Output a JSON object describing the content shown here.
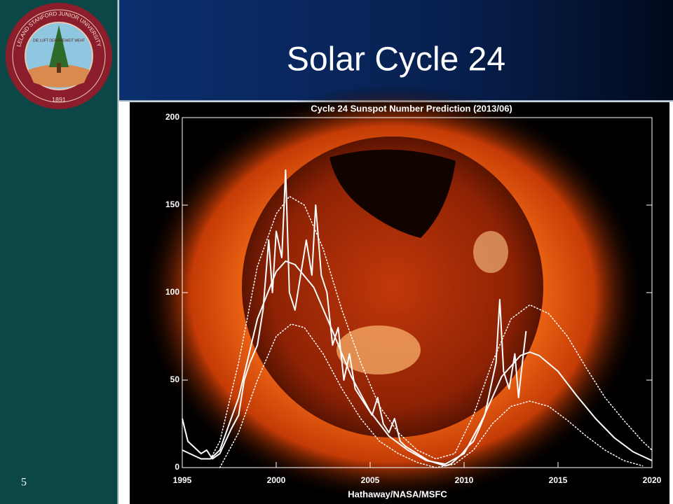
{
  "slide": {
    "title": "Solar Cycle 24",
    "page_number": "5",
    "seal": {
      "name": "LELAND STANFORD JUNIOR UNIVERSITY",
      "motto": "DIE LUFT DER FREIHEIT WEHT",
      "year": "1891"
    }
  },
  "chart_data": {
    "type": "line",
    "title": "Cycle 24 Sunspot Number Prediction (2013/06)",
    "credit": "Hathaway/NASA/MSFC",
    "xlim": [
      1995,
      2020
    ],
    "xticks": [
      1995,
      2000,
      2005,
      2010,
      2015,
      2020
    ],
    "ylim": [
      0,
      200
    ],
    "yticks": [
      0,
      50,
      100,
      150,
      200
    ],
    "series": [
      {
        "color": "#ffffff",
        "style": "solid",
        "width": 2,
        "x": [
          1995.0,
          1995.3,
          1995.6,
          1996.0,
          1996.3,
          1996.6,
          1997.0,
          1997.3,
          1997.6,
          1998.0,
          1998.3,
          1998.6,
          1999.0,
          1999.3,
          1999.6,
          1999.8,
          2000.0,
          2000.3,
          2000.5,
          2000.7,
          2001.0,
          2001.3,
          2001.6,
          2001.9,
          2002.1,
          2002.4,
          2002.7,
          2003.0,
          2003.3,
          2003.6,
          2003.9,
          2004.2,
          2004.5,
          2004.8,
          2005.1,
          2005.4,
          2005.7,
          2006.0,
          2006.3,
          2006.6,
          2006.9,
          2007.2,
          2007.5,
          2007.8,
          2008.1,
          2008.4,
          2008.7,
          2009.0,
          2009.3,
          2009.6,
          2009.9,
          2010.2,
          2010.5,
          2010.8,
          2011.1,
          2011.4,
          2011.7,
          2011.9,
          2012.1,
          2012.4,
          2012.7,
          2012.9,
          2013.1,
          2013.3
        ],
        "values": [
          28,
          15,
          12,
          8,
          10,
          5,
          8,
          15,
          22,
          30,
          50,
          60,
          70,
          90,
          130,
          100,
          135,
          120,
          170,
          100,
          90,
          110,
          130,
          110,
          150,
          110,
          100,
          70,
          80,
          50,
          65,
          45,
          40,
          35,
          30,
          40,
          25,
          20,
          28,
          15,
          12,
          10,
          8,
          6,
          4,
          3,
          2,
          1,
          2,
          5,
          8,
          12,
          15,
          22,
          30,
          45,
          60,
          96,
          55,
          45,
          65,
          40,
          60,
          78
        ]
      },
      {
        "color": "#ffffff",
        "style": "solid",
        "width": 2,
        "x": [
          1995,
          1996,
          1996.5,
          1997,
          1998,
          1999,
          2000,
          2000.5,
          2001,
          2002,
          2003,
          2004,
          2005,
          2006,
          2007,
          2008,
          2009,
          2010,
          2011,
          2012,
          2013,
          2013.5,
          2014,
          2015,
          2016,
          2017,
          2018,
          2019,
          2020
        ],
        "values": [
          10,
          5,
          5,
          10,
          40,
          85,
          112,
          118,
          116,
          103,
          78,
          52,
          32,
          18,
          10,
          4,
          2,
          8,
          28,
          52,
          64,
          66,
          64,
          55,
          41,
          28,
          17,
          9,
          4
        ]
      },
      {
        "color": "#ffffff",
        "style": "dotted",
        "width": 1.5,
        "x": [
          1996.5,
          1997,
          1998,
          1999,
          2000,
          2000.7,
          2001.5,
          2002.5,
          2003.5,
          2004.5,
          2005.5,
          2006.5,
          2007.5,
          2008.5,
          2009.5,
          2010.5,
          2011.5,
          2012.5,
          2013.5,
          2014.5,
          2015.5,
          2016.5,
          2017.5,
          2018.5,
          2019.5,
          2020
        ],
        "values": [
          5,
          15,
          60,
          115,
          145,
          155,
          150,
          125,
          90,
          60,
          35,
          20,
          10,
          5,
          8,
          30,
          60,
          85,
          93,
          88,
          75,
          57,
          40,
          27,
          15,
          10
        ]
      },
      {
        "color": "#ffffff",
        "style": "dotted",
        "width": 1.5,
        "x": [
          1997,
          1998,
          1999,
          2000,
          2000.8,
          2001.5,
          2002.5,
          2003.5,
          2004.5,
          2005.5,
          2006.5,
          2007.5,
          2008.5,
          2009.5,
          2010.5,
          2011.5,
          2012.5,
          2013.5,
          2014.5,
          2015.5,
          2016.5,
          2017.5,
          2018.5,
          2019.5
        ],
        "values": [
          0,
          20,
          50,
          75,
          82,
          80,
          65,
          45,
          28,
          15,
          8,
          3,
          0,
          2,
          10,
          25,
          35,
          38,
          35,
          27,
          18,
          10,
          4,
          1
        ]
      }
    ]
  }
}
